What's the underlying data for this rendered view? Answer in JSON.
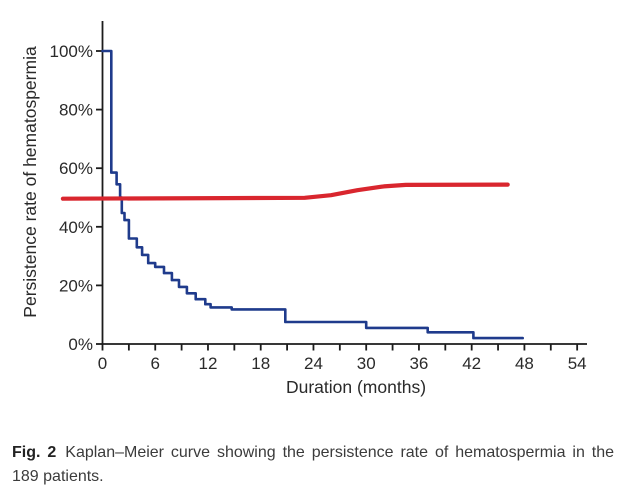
{
  "figure": {
    "caption_label": "Fig. 2",
    "caption_text": "Kaplan–Meier curve showing the persistence rate of hematospermia in the 189 patients."
  },
  "chart_data": {
    "type": "line",
    "title": "",
    "xlabel": "Duration (months)",
    "ylabel": "Persistence rate of hematospermia",
    "xlim": [
      0,
      55
    ],
    "ylim": [
      0,
      112
    ],
    "grid": false,
    "legend": "none",
    "x_ticks_major": [
      0,
      6,
      12,
      18,
      24,
      30,
      36,
      42,
      48,
      54
    ],
    "x_ticks_minor": [
      3,
      9,
      15,
      21,
      27,
      33,
      39,
      45,
      51
    ],
    "y_ticks": [
      0,
      20,
      40,
      60,
      80,
      100
    ],
    "y_tick_suffix": "%",
    "colors": {
      "axis": "#1c1c1c",
      "tick_text": "#2a2a2a",
      "blue": "#1f3b8c",
      "red": "#d9262e"
    },
    "series": [
      {
        "name": "persistence-step-curve",
        "style": "step",
        "color_key": "blue",
        "stroke_width": 2.6,
        "points": [
          [
            0,
            100
          ],
          [
            1,
            58.5
          ],
          [
            1.6,
            54.5
          ],
          [
            2.0,
            50
          ],
          [
            2.2,
            44.7
          ],
          [
            2.5,
            42.3
          ],
          [
            3.0,
            36
          ],
          [
            3.9,
            33
          ],
          [
            4.5,
            30.4
          ],
          [
            5.2,
            27.6
          ],
          [
            6.0,
            26.3
          ],
          [
            7.0,
            24.2
          ],
          [
            7.9,
            21.8
          ],
          [
            8.7,
            19.5
          ],
          [
            9.6,
            17.3
          ],
          [
            10.6,
            15.3
          ],
          [
            11.7,
            13.6
          ],
          [
            12.3,
            12.5
          ],
          [
            14.7,
            11.8
          ],
          [
            20.8,
            7.5
          ],
          [
            30,
            5.5
          ],
          [
            37,
            4
          ],
          [
            42.2,
            2
          ],
          [
            47.8,
            2
          ]
        ]
      },
      {
        "name": "red-reference-curve",
        "style": "smooth",
        "color_key": "red",
        "stroke_width": 4.2,
        "points": [
          [
            -4.5,
            49.6
          ],
          [
            14,
            49.8
          ],
          [
            23,
            49.9
          ],
          [
            26,
            50.8
          ],
          [
            29,
            52.5
          ],
          [
            32,
            53.8
          ],
          [
            34.5,
            54.3
          ],
          [
            46.1,
            54.4
          ]
        ]
      }
    ]
  }
}
